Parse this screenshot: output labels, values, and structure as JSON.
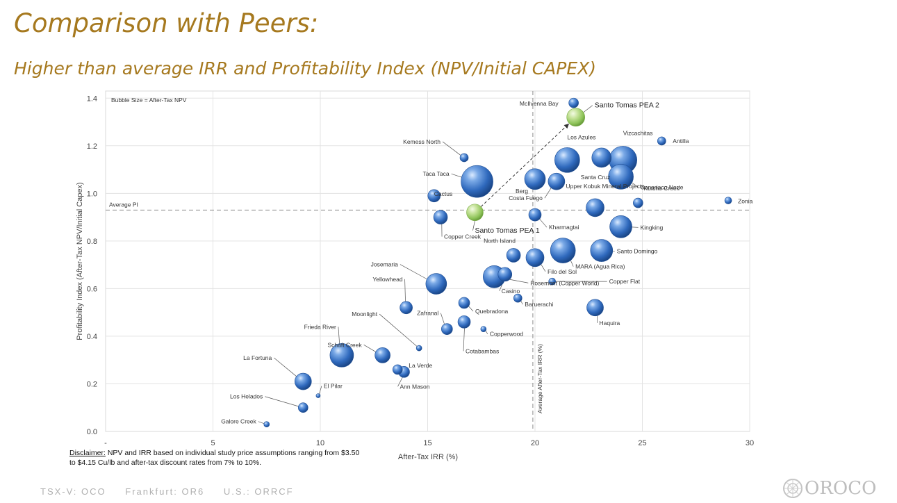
{
  "header": {
    "title": "Comparison with Peers:",
    "subtitle": "Higher than average IRR and Profitability Index (NPV/Initial CAPEX)"
  },
  "chart_data": {
    "type": "bubble",
    "note": "Bubble Size = After-Tax NPV",
    "xlabel": "After-Tax IRR (%)",
    "ylabel": "Profitability Index (After-Tax NPV/Initial Capex)",
    "xlim": [
      0,
      30
    ],
    "ylim": [
      0,
      1.45
    ],
    "x_ticks": [
      "-",
      "5",
      "10",
      "15",
      "20",
      "25",
      "30"
    ],
    "y_ticks": [
      "0.0",
      "0.2",
      "0.4",
      "0.6",
      "0.8",
      "1.0",
      "1.2",
      "1.4"
    ],
    "average_pi": {
      "label": "Average PI",
      "value": 0.93
    },
    "average_irr": {
      "label": "Average After-Tax IRR (%)",
      "value": 19.9
    },
    "arrow": {
      "from": "Santo Tomas PEA 1",
      "to": "Santo Tomas PEA 2"
    },
    "points": [
      {
        "name": "Santo Tomas PEA 2",
        "x": 21.9,
        "y": 1.32,
        "r": 13,
        "highlight": true
      },
      {
        "name": "Santo Tomas PEA 1",
        "x": 17.2,
        "y": 0.92,
        "r": 12,
        "highlight": true
      },
      {
        "name": "McIlvenna Bay",
        "x": 21.8,
        "y": 1.38,
        "r": 7
      },
      {
        "name": "Los Azules",
        "x": 21.5,
        "y": 1.14,
        "r": 18
      },
      {
        "name": "Vizcachitas",
        "x": 24.1,
        "y": 1.14,
        "r": 20
      },
      {
        "name": "Antilla",
        "x": 25.9,
        "y": 1.22,
        "r": 6
      },
      {
        "name": "Santa Cruz",
        "x": 23.1,
        "y": 1.15,
        "r": 14
      },
      {
        "name": "Canariaco Norte",
        "x": 24.0,
        "y": 1.07,
        "r": 18
      },
      {
        "name": "Kemess North",
        "x": 16.7,
        "y": 1.15,
        "r": 6
      },
      {
        "name": "Taca Taca",
        "x": 17.3,
        "y": 1.05,
        "r": 23
      },
      {
        "name": "Berg",
        "x": 20.0,
        "y": 1.06,
        "r": 15
      },
      {
        "name": "Costa Fuego",
        "x": 21.0,
        "y": 1.05,
        "r": 12
      },
      {
        "name": "Cactus",
        "x": 15.3,
        "y": 0.99,
        "r": 9
      },
      {
        "name": "Upper Kobuk Mineral Projects",
        "x": 22.8,
        "y": 0.94,
        "r": 13
      },
      {
        "name": "Kutcho Creek",
        "x": 24.8,
        "y": 0.96,
        "r": 7
      },
      {
        "name": "Zonia",
        "x": 29.0,
        "y": 0.97,
        "r": 5
      },
      {
        "name": "Kharmagtai",
        "x": 20.0,
        "y": 0.91,
        "r": 9
      },
      {
        "name": "Copper Creek",
        "x": 15.6,
        "y": 0.9,
        "r": 10
      },
      {
        "name": "Kingking",
        "x": 24.0,
        "y": 0.86,
        "r": 16
      },
      {
        "name": "North Island",
        "x": 19.0,
        "y": 0.74,
        "r": 10
      },
      {
        "name": "Santo Domingo",
        "x": 23.1,
        "y": 0.76,
        "r": 16
      },
      {
        "name": "MARA (Agua Rica)",
        "x": 21.3,
        "y": 0.76,
        "r": 18
      },
      {
        "name": "Filo del Sol",
        "x": 20.0,
        "y": 0.73,
        "r": 13
      },
      {
        "name": "Copper Flat",
        "x": 20.8,
        "y": 0.63,
        "r": 5
      },
      {
        "name": "Josemaria",
        "x": 15.4,
        "y": 0.62,
        "r": 15
      },
      {
        "name": "Rosemont (Copper World)",
        "x": 18.1,
        "y": 0.65,
        "r": 16
      },
      {
        "name": "Casino",
        "x": 18.6,
        "y": 0.66,
        "r": 10
      },
      {
        "name": "Yellowhead",
        "x": 14.0,
        "y": 0.52,
        "r": 9
      },
      {
        "name": "Quebradona",
        "x": 16.7,
        "y": 0.54,
        "r": 8
      },
      {
        "name": "Baruerachi",
        "x": 19.2,
        "y": 0.56,
        "r": 6
      },
      {
        "name": "Haquira",
        "x": 22.8,
        "y": 0.52,
        "r": 12
      },
      {
        "name": "Zafranal",
        "x": 15.9,
        "y": 0.43,
        "r": 8
      },
      {
        "name": "Cotabambas",
        "x": 16.7,
        "y": 0.46,
        "r": 9
      },
      {
        "name": "Copperwood",
        "x": 17.6,
        "y": 0.43,
        "r": 4
      },
      {
        "name": "Moonlight",
        "x": 14.6,
        "y": 0.35,
        "r": 4
      },
      {
        "name": "Frieda River",
        "x": 11.0,
        "y": 0.32,
        "r": 17
      },
      {
        "name": "Schaft Creek",
        "x": 12.9,
        "y": 0.32,
        "r": 11
      },
      {
        "name": "La Verde",
        "x": 13.6,
        "y": 0.26,
        "r": 7
      },
      {
        "name": "Ann Mason",
        "x": 13.9,
        "y": 0.25,
        "r": 8
      },
      {
        "name": "La Fortuna",
        "x": 9.2,
        "y": 0.21,
        "r": 12
      },
      {
        "name": "El Pilar",
        "x": 9.9,
        "y": 0.15,
        "r": 3
      },
      {
        "name": "Los Helados",
        "x": 9.2,
        "y": 0.1,
        "r": 7
      },
      {
        "name": "Galore Creek",
        "x": 7.5,
        "y": 0.03,
        "r": 4
      }
    ]
  },
  "disclaimer": {
    "label": "Disclaimer:",
    "text": " NPV and IRR based on individual study price assumptions ranging from $3.50 to $4.15 Cu/lb and after-tax discount rates from 7% to 10%."
  },
  "footer": {
    "tsx": "TSX-V: OCO",
    "frankfurt": "Frankfurt: OR6",
    "us": "U.S.: ORRCF"
  },
  "logo": {
    "text": "OROCO"
  }
}
